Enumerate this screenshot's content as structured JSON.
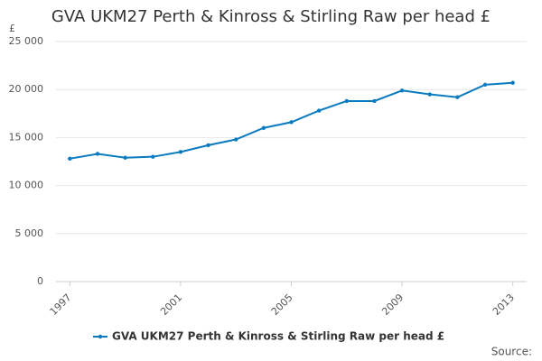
{
  "chart_data": {
    "type": "line",
    "title": "GVA UKM27 Perth & Kinross & Stirling Raw per head £",
    "y_unit_label": "£",
    "source": "Source:",
    "x": [
      1997,
      1998,
      1999,
      2000,
      2001,
      2002,
      2003,
      2004,
      2005,
      2006,
      2007,
      2008,
      2009,
      2010,
      2011,
      2012,
      2013
    ],
    "series": [
      {
        "name": "GVA UKM27 Perth & Kinross & Stirling Raw per head £",
        "color": "#0b7bbf",
        "values": [
          12800,
          13300,
          12900,
          13000,
          13500,
          14200,
          14800,
          16000,
          16600,
          17800,
          18800,
          18800,
          19900,
          19500,
          19200,
          20500,
          20700
        ]
      }
    ],
    "xlim": [
      1996.5,
      2013.5
    ],
    "xticks": [
      1997,
      2001,
      2005,
      2009,
      2013
    ],
    "ylim": [
      0,
      25000
    ],
    "yticks": [
      0,
      {
        "value": 5000,
        "label": "5 000"
      },
      {
        "value": 10000,
        "label": "10 000"
      },
      {
        "value": 15000,
        "label": "15 000"
      },
      {
        "value": 20000,
        "label": "20 000"
      },
      {
        "value": 25000,
        "label": "25 000"
      }
    ],
    "grid": true
  }
}
